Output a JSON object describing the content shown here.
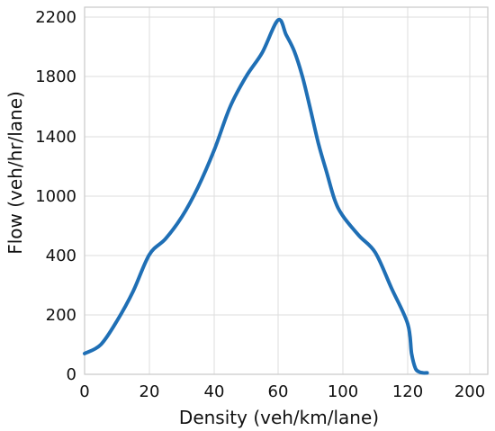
{
  "chart_data": {
    "type": "line",
    "title": "",
    "xlabel": "Density (veh/km/lane)",
    "ylabel": "Flow (veh/hr/lane)",
    "x_ticks": [
      "0",
      "20",
      "40",
      "60",
      "100",
      "120",
      "200"
    ],
    "y_ticks": [
      "0",
      "200",
      "400",
      "1000",
      "1400",
      "1800",
      "2200"
    ],
    "grid": true,
    "legend": "none",
    "series_color": "#1f6fb5",
    "series": [
      {
        "x": [
          0,
          5,
          10,
          15,
          20,
          25,
          30,
          35,
          40,
          45,
          50,
          55,
          60,
          65,
          70,
          75,
          80,
          85,
          90,
          95,
          100,
          105,
          110,
          115,
          120,
          125,
          130,
          135,
          140,
          145
        ],
        "y": [
          70,
          100,
          180,
          280,
          410,
          570,
          790,
          1060,
          1310,
          1600,
          1800,
          1960,
          2180,
          2080,
          1970,
          1800,
          1580,
          1350,
          1160,
          960,
          800,
          600,
          430,
          290,
          170,
          70,
          20,
          8,
          5,
          5
        ]
      }
    ]
  }
}
